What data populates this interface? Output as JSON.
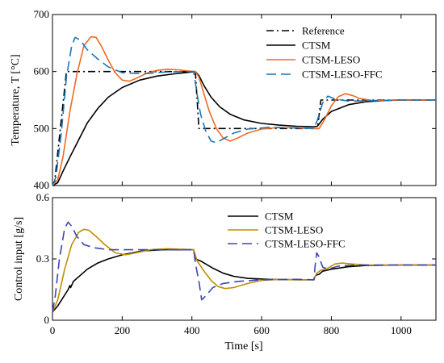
{
  "chart_data": [
    {
      "type": "line",
      "title": "",
      "xlabel": "",
      "ylabel": "Temperature, T [°C]",
      "xlim": [
        0,
        1100
      ],
      "ylim": [
        400,
        700
      ],
      "xticks": [
        "0",
        "200",
        "400",
        "600",
        "800",
        "1000"
      ],
      "yticks": [
        "400",
        "500",
        "600",
        "700"
      ],
      "grid": false,
      "legend_position": "top-right",
      "series": [
        {
          "name": "Reference",
          "color": "#000000",
          "dash": "dashdot",
          "points": [
            [
              0,
              400
            ],
            [
              5,
              400
            ],
            [
              40,
              600
            ],
            [
              400,
              600
            ],
            [
              410,
              600
            ],
            [
              420,
              500
            ],
            [
              750,
              500
            ],
            [
              760,
              500
            ],
            [
              770,
              550
            ],
            [
              1100,
              550
            ]
          ]
        },
        {
          "name": "CTSM",
          "color": "#000000",
          "dash": "solid",
          "points": [
            [
              0,
              400
            ],
            [
              15,
              405
            ],
            [
              30,
              425
            ],
            [
              50,
              450
            ],
            [
              75,
              480
            ],
            [
              100,
              510
            ],
            [
              130,
              535
            ],
            [
              160,
              555
            ],
            [
              200,
              572
            ],
            [
              250,
              585
            ],
            [
              300,
              592
            ],
            [
              350,
              596
            ],
            [
              395,
              599
            ],
            [
              410,
              600
            ],
            [
              420,
              593
            ],
            [
              435,
              575
            ],
            [
              455,
              555
            ],
            [
              480,
              538
            ],
            [
              510,
              525
            ],
            [
              550,
              515
            ],
            [
              600,
              509
            ],
            [
              650,
              506
            ],
            [
              700,
              504
            ],
            [
              750,
              503
            ],
            [
              760,
              504
            ],
            [
              775,
              516
            ],
            [
              800,
              530
            ],
            [
              850,
              542
            ],
            [
              900,
              547
            ],
            [
              950,
              549
            ],
            [
              1000,
              550
            ],
            [
              1100,
              550
            ]
          ]
        },
        {
          "name": "CTSM-LESO",
          "color": "#F26A23",
          "dash": "solid",
          "points": [
            [
              0,
              400
            ],
            [
              15,
              410
            ],
            [
              30,
              450
            ],
            [
              50,
              530
            ],
            [
              70,
              595
            ],
            [
              90,
              645
            ],
            [
              110,
              661
            ],
            [
              125,
              660
            ],
            [
              140,
              645
            ],
            [
              160,
              620
            ],
            [
              180,
              598
            ],
            [
              200,
              585
            ],
            [
              220,
              583
            ],
            [
              240,
              588
            ],
            [
              270,
              597
            ],
            [
              300,
              602
            ],
            [
              330,
              604
            ],
            [
              360,
              603
            ],
            [
              390,
              601
            ],
            [
              410,
              600
            ],
            [
              420,
              590
            ],
            [
              435,
              560
            ],
            [
              450,
              530
            ],
            [
              470,
              500
            ],
            [
              490,
              483
            ],
            [
              510,
              478
            ],
            [
              530,
              483
            ],
            [
              560,
              492
            ],
            [
              600,
              499
            ],
            [
              650,
              502
            ],
            [
              700,
              501
            ],
            [
              750,
              500
            ],
            [
              765,
              500
            ],
            [
              780,
              515
            ],
            [
              800,
              540
            ],
            [
              820,
              556
            ],
            [
              840,
              561
            ],
            [
              860,
              558
            ],
            [
              880,
              553
            ],
            [
              920,
              549
            ],
            [
              1000,
              550
            ],
            [
              1100,
              550
            ]
          ]
        },
        {
          "name": "CTSM-LESO-FFC",
          "color": "#1E76B4",
          "dash": "dashed",
          "points": [
            [
              0,
              400
            ],
            [
              10,
              415
            ],
            [
              25,
              490
            ],
            [
              40,
              590
            ],
            [
              55,
              645
            ],
            [
              65,
              660
            ],
            [
              80,
              655
            ],
            [
              100,
              638
            ],
            [
              130,
              622
            ],
            [
              160,
              608
            ],
            [
              200,
              598
            ],
            [
              260,
              596
            ],
            [
              320,
              599
            ],
            [
              380,
              600
            ],
            [
              405,
              600
            ],
            [
              415,
              560
            ],
            [
              425,
              525
            ],
            [
              440,
              495
            ],
            [
              455,
              478
            ],
            [
              470,
              475
            ],
            [
              490,
              482
            ],
            [
              520,
              492
            ],
            [
              560,
              499
            ],
            [
              620,
              502
            ],
            [
              700,
              501
            ],
            [
              750,
              500
            ],
            [
              760,
              515
            ],
            [
              775,
              545
            ],
            [
              790,
              557
            ],
            [
              810,
              552
            ],
            [
              850,
              548
            ],
            [
              1000,
              550
            ],
            [
              1100,
              550
            ]
          ]
        }
      ]
    },
    {
      "type": "line",
      "title": "",
      "xlabel": "Time [s]",
      "ylabel": "Control input [g/s]",
      "xlim": [
        0,
        1100
      ],
      "ylim": [
        0,
        0.6
      ],
      "xticks": [
        "0",
        "200",
        "400",
        "600",
        "800",
        "1000"
      ],
      "yticks": [
        "0",
        "0.3",
        "0.6"
      ],
      "grid": false,
      "legend_position": "top-right",
      "series": [
        {
          "name": "CTSM",
          "color": "#000000",
          "dash": "solid",
          "points": [
            [
              0,
              0.04
            ],
            [
              15,
              0.07
            ],
            [
              30,
              0.11
            ],
            [
              45,
              0.15
            ],
            [
              50,
              0.17
            ],
            [
              52,
              0.16
            ],
            [
              60,
              0.19
            ],
            [
              80,
              0.22
            ],
            [
              100,
              0.25
            ],
            [
              130,
              0.28
            ],
            [
              160,
              0.3
            ],
            [
              200,
              0.32
            ],
            [
              260,
              0.34
            ],
            [
              320,
              0.345
            ],
            [
              405,
              0.345
            ],
            [
              410,
              0.3
            ],
            [
              425,
              0.29
            ],
            [
              440,
              0.275
            ],
            [
              460,
              0.255
            ],
            [
              490,
              0.23
            ],
            [
              520,
              0.215
            ],
            [
              560,
              0.205
            ],
            [
              620,
              0.2
            ],
            [
              700,
              0.198
            ],
            [
              750,
              0.198
            ],
            [
              755,
              0.22
            ],
            [
              765,
              0.225
            ],
            [
              775,
              0.24
            ],
            [
              800,
              0.25
            ],
            [
              850,
              0.262
            ],
            [
              900,
              0.268
            ],
            [
              1000,
              0.27
            ],
            [
              1100,
              0.27
            ]
          ]
        },
        {
          "name": "CTSM-LESO",
          "color": "#BF8F00",
          "dash": "solid",
          "points": [
            [
              0,
              0.04
            ],
            [
              15,
              0.1
            ],
            [
              35,
              0.25
            ],
            [
              55,
              0.37
            ],
            [
              75,
              0.43
            ],
            [
              90,
              0.445
            ],
            [
              105,
              0.44
            ],
            [
              125,
              0.41
            ],
            [
              150,
              0.37
            ],
            [
              180,
              0.33
            ],
            [
              210,
              0.32
            ],
            [
              240,
              0.33
            ],
            [
              280,
              0.345
            ],
            [
              330,
              0.35
            ],
            [
              405,
              0.345
            ],
            [
              415,
              0.29
            ],
            [
              435,
              0.24
            ],
            [
              455,
              0.195
            ],
            [
              475,
              0.165
            ],
            [
              495,
              0.155
            ],
            [
              520,
              0.16
            ],
            [
              560,
              0.18
            ],
            [
              600,
              0.195
            ],
            [
              650,
              0.2
            ],
            [
              700,
              0.198
            ],
            [
              750,
              0.198
            ],
            [
              758,
              0.23
            ],
            [
              770,
              0.245
            ],
            [
              790,
              0.255
            ],
            [
              810,
              0.275
            ],
            [
              830,
              0.28
            ],
            [
              860,
              0.275
            ],
            [
              900,
              0.27
            ],
            [
              1100,
              0.27
            ]
          ]
        },
        {
          "name": "CTSM-LESO-FFC",
          "color": "#3A47B5",
          "dash": "dashed",
          "points": [
            [
              0,
              0.04
            ],
            [
              8,
              0.12
            ],
            [
              20,
              0.3
            ],
            [
              35,
              0.45
            ],
            [
              45,
              0.48
            ],
            [
              55,
              0.46
            ],
            [
              70,
              0.41
            ],
            [
              90,
              0.37
            ],
            [
              120,
              0.355
            ],
            [
              160,
              0.345
            ],
            [
              220,
              0.345
            ],
            [
              300,
              0.345
            ],
            [
              405,
              0.345
            ],
            [
              410,
              0.28
            ],
            [
              420,
              0.19
            ],
            [
              428,
              0.1
            ],
            [
              440,
              0.12
            ],
            [
              460,
              0.16
            ],
            [
              490,
              0.18
            ],
            [
              530,
              0.19
            ],
            [
              600,
              0.198
            ],
            [
              700,
              0.2
            ],
            [
              750,
              0.198
            ],
            [
              753,
              0.26
            ],
            [
              758,
              0.33
            ],
            [
              765,
              0.31
            ],
            [
              775,
              0.26
            ],
            [
              790,
              0.25
            ],
            [
              820,
              0.265
            ],
            [
              870,
              0.27
            ],
            [
              1100,
              0.27
            ]
          ]
        }
      ]
    }
  ]
}
